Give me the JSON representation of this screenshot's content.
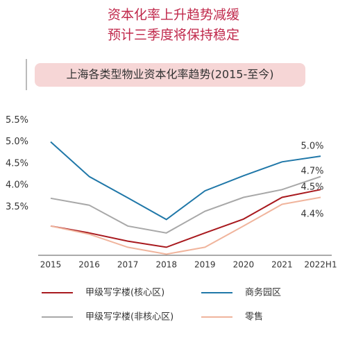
{
  "chart_data": {
    "type": "line",
    "title": "资本化率上升趋势减缓",
    "subtitle": "预计三季度将保持稳定",
    "chart_title": "上海各类型物业资本化率趋势(2015-至今)",
    "categories": [
      "2015",
      "2016",
      "2017",
      "2018",
      "2019",
      "2020",
      "2021",
      "2022H1"
    ],
    "series": [
      {
        "name": "甲级写字楼(核心区)",
        "color": "#a8191e",
        "values": [
          3.06,
          2.9,
          2.71,
          2.57,
          2.9,
          3.22,
          3.72,
          3.9
        ]
      },
      {
        "name": "商务园区",
        "color": "#1f77a8",
        "values": [
          5.0,
          4.2,
          3.71,
          3.21,
          3.87,
          4.22,
          4.54,
          4.67
        ]
      },
      {
        "name": "甲级写字楼(非核心区)",
        "color": "#a8a8a8",
        "values": [
          3.7,
          3.54,
          3.06,
          2.9,
          3.4,
          3.72,
          3.9,
          4.2
        ]
      },
      {
        "name": "零售",
        "color": "#f0b49c",
        "values": [
          3.06,
          2.87,
          2.57,
          2.41,
          2.57,
          3.06,
          3.56,
          3.72
        ]
      }
    ],
    "annotations": [
      "5.0%",
      "4.7%",
      "4.5%",
      "4.4%"
    ],
    "ylim": [
      2.4,
      5.6
    ],
    "yticks": [
      {
        "value": 5.5,
        "label": "5.5%"
      },
      {
        "value": 5.0,
        "label": "5.0%"
      },
      {
        "value": 4.5,
        "label": "4.5%"
      },
      {
        "value": 4.0,
        "label": "4.0%"
      },
      {
        "value": 3.5,
        "label": "3.5%"
      }
    ]
  }
}
